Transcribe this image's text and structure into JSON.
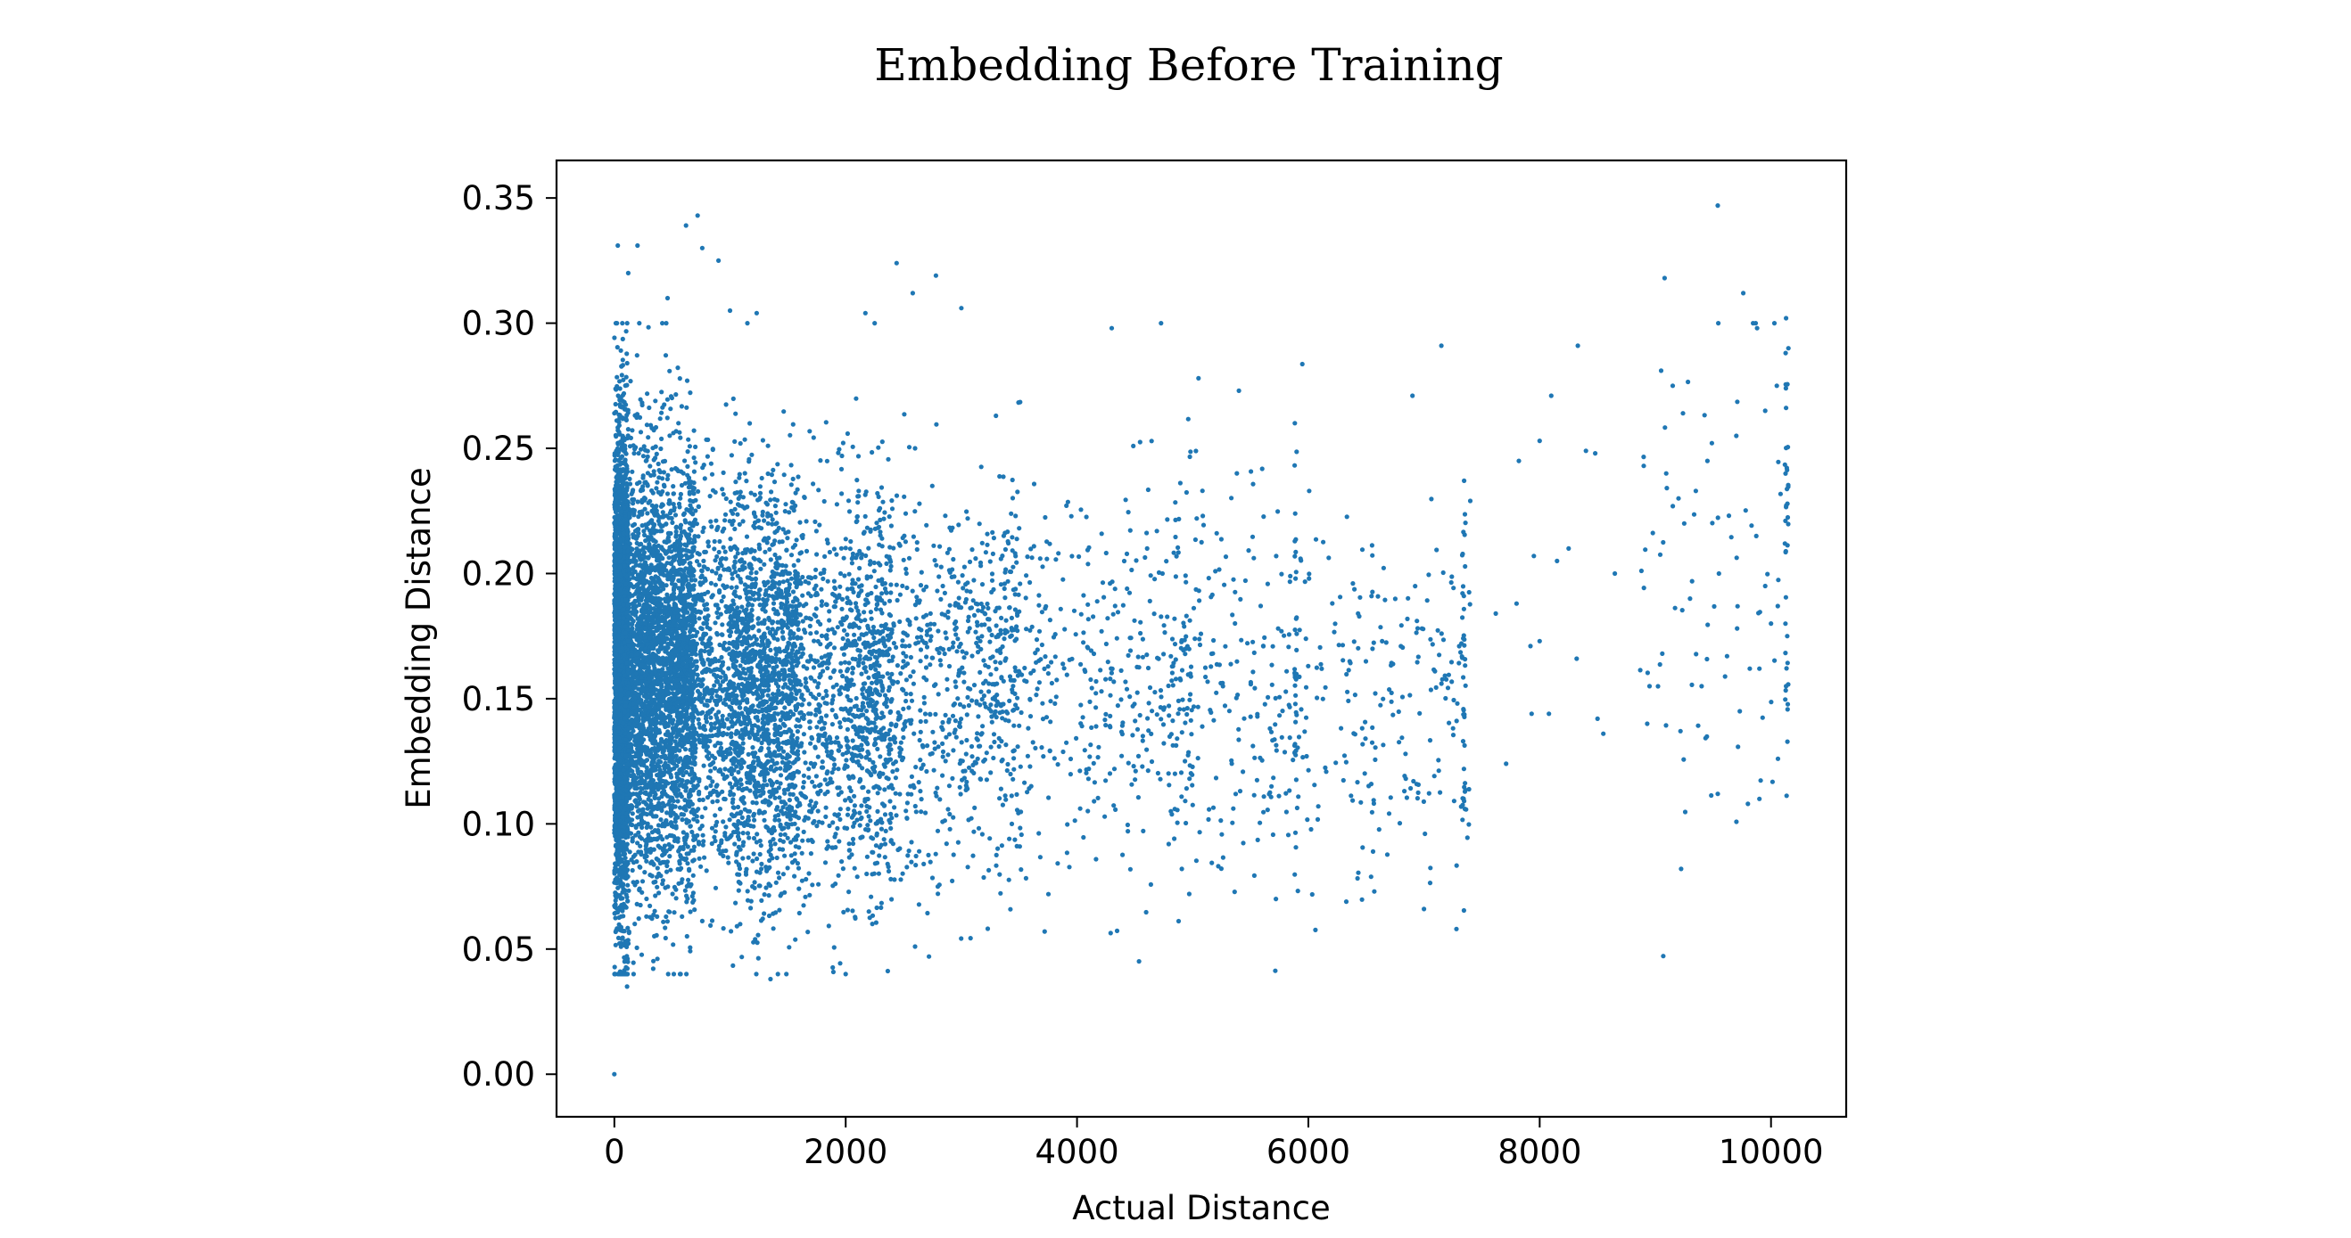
{
  "chart_data": {
    "type": "scatter",
    "title": "Embedding Before Training",
    "xlabel": "Actual Distance",
    "ylabel": "Embedding Distance",
    "xlim": [
      -500,
      10650
    ],
    "ylim": [
      -0.017,
      0.365
    ],
    "x_ticks": [
      0,
      2000,
      4000,
      6000,
      8000,
      10000
    ],
    "x_tick_labels": [
      "0",
      "2000",
      "4000",
      "6000",
      "8000",
      "10000"
    ],
    "y_ticks": [
      0.0,
      0.05,
      0.1,
      0.15,
      0.2,
      0.25,
      0.3,
      0.35
    ],
    "y_tick_labels": [
      "0.00",
      "0.05",
      "0.10",
      "0.15",
      "0.20",
      "0.25",
      "0.30",
      "0.35"
    ],
    "grid": false,
    "legend": "none",
    "marker_color": "#1f77b4",
    "points": [
      {
        "x": 0,
        "y": 0.0
      },
      {
        "x": 30,
        "y": 0.331
      },
      {
        "x": 200,
        "y": 0.331
      },
      {
        "x": 120,
        "y": 0.32
      },
      {
        "x": 620,
        "y": 0.339
      },
      {
        "x": 720,
        "y": 0.343
      },
      {
        "x": 760,
        "y": 0.33
      },
      {
        "x": 900,
        "y": 0.325
      },
      {
        "x": 460,
        "y": 0.31
      },
      {
        "x": 1000,
        "y": 0.305
      },
      {
        "x": 1230,
        "y": 0.304
      },
      {
        "x": 1150,
        "y": 0.3
      },
      {
        "x": 2440,
        "y": 0.324
      },
      {
        "x": 2780,
        "y": 0.319
      },
      {
        "x": 2580,
        "y": 0.312
      },
      {
        "x": 2170,
        "y": 0.304
      },
      {
        "x": 3000,
        "y": 0.306
      },
      {
        "x": 2600,
        "y": 0.25
      },
      {
        "x": 4300,
        "y": 0.298
      },
      {
        "x": 7150,
        "y": 0.291
      },
      {
        "x": 8330,
        "y": 0.291
      },
      {
        "x": 9540,
        "y": 0.347
      },
      {
        "x": 9080,
        "y": 0.318
      },
      {
        "x": 9760,
        "y": 0.312
      },
      {
        "x": 10130,
        "y": 0.302
      },
      {
        "x": 9880,
        "y": 0.298
      },
      {
        "x": 5050,
        "y": 0.278
      },
      {
        "x": 5400,
        "y": 0.273
      },
      {
        "x": 6900,
        "y": 0.271
      },
      {
        "x": 8100,
        "y": 0.271
      },
      {
        "x": 9050,
        "y": 0.281
      },
      {
        "x": 9150,
        "y": 0.275
      },
      {
        "x": 7820,
        "y": 0.245
      },
      {
        "x": 8000,
        "y": 0.253
      },
      {
        "x": 8400,
        "y": 0.249
      },
      {
        "x": 8480,
        "y": 0.248
      },
      {
        "x": 8900,
        "y": 0.243
      },
      {
        "x": 7400,
        "y": 0.229
      },
      {
        "x": 8150,
        "y": 0.205
      },
      {
        "x": 8250,
        "y": 0.21
      },
      {
        "x": 8650,
        "y": 0.2
      },
      {
        "x": 7950,
        "y": 0.207
      },
      {
        "x": 7800,
        "y": 0.188
      },
      {
        "x": 7620,
        "y": 0.184
      },
      {
        "x": 8000,
        "y": 0.173
      },
      {
        "x": 7920,
        "y": 0.171
      },
      {
        "x": 8320,
        "y": 0.166
      },
      {
        "x": 8080,
        "y": 0.144
      },
      {
        "x": 7930,
        "y": 0.144
      },
      {
        "x": 8500,
        "y": 0.142
      },
      {
        "x": 8550,
        "y": 0.136
      },
      {
        "x": 8950,
        "y": 0.155
      },
      {
        "x": 8930,
        "y": 0.14
      },
      {
        "x": 7710,
        "y": 0.124
      },
      {
        "x": 9060,
        "y": 0.168
      },
      {
        "x": 9400,
        "y": 0.155
      },
      {
        "x": 9540,
        "y": 0.112
      },
      {
        "x": 9800,
        "y": 0.108
      },
      {
        "x": 9900,
        "y": 0.11
      },
      {
        "x": 10060,
        "y": 0.126
      },
      {
        "x": 10130,
        "y": 0.155
      },
      {
        "x": 10140,
        "y": 0.175
      },
      {
        "x": 10120,
        "y": 0.212
      },
      {
        "x": 9730,
        "y": 0.145
      },
      {
        "x": 9620,
        "y": 0.167
      },
      {
        "x": 9900,
        "y": 0.162
      },
      {
        "x": 10000,
        "y": 0.18
      },
      {
        "x": 9950,
        "y": 0.195
      },
      {
        "x": 9550,
        "y": 0.2
      },
      {
        "x": 9300,
        "y": 0.19
      },
      {
        "x": 9250,
        "y": 0.22
      },
      {
        "x": 9200,
        "y": 0.23
      },
      {
        "x": 9450,
        "y": 0.245
      },
      {
        "x": 9700,
        "y": 0.255
      },
      {
        "x": 9950,
        "y": 0.265
      },
      {
        "x": 10050,
        "y": 0.275
      },
      {
        "x": 10150,
        "y": 0.29
      },
      {
        "x": 1350,
        "y": 0.038
      },
      {
        "x": 2720,
        "y": 0.047
      },
      {
        "x": 2600,
        "y": 0.051
      },
      {
        "x": 3720,
        "y": 0.057
      },
      {
        "x": 7280,
        "y": 0.058
      },
      {
        "x": 7000,
        "y": 0.066
      },
      {
        "x": 6570,
        "y": 0.073
      },
      {
        "x": 5720,
        "y": 0.07
      },
      {
        "x": 4970,
        "y": 0.072
      },
      {
        "x": 2200,
        "y": 0.065
      },
      {
        "x": 110,
        "y": 0.035
      },
      {
        "x": 50,
        "y": 0.041
      }
    ],
    "density_model": [
      {
        "x_min": 0,
        "x_max": 120,
        "y_mean": 0.158,
        "y_sd": 0.05,
        "n": 2200
      },
      {
        "x_min": 0,
        "x_max": 700,
        "y_mean": 0.162,
        "y_sd": 0.042,
        "n": 2600
      },
      {
        "x_min": 0,
        "x_max": 1600,
        "y_mean": 0.155,
        "y_sd": 0.04,
        "n": 2600
      },
      {
        "x_min": 1000,
        "x_max": 2400,
        "y_mean": 0.153,
        "y_sd": 0.04,
        "n": 1400
      },
      {
        "x_min": 2000,
        "x_max": 3500,
        "y_mean": 0.155,
        "y_sd": 0.038,
        "n": 850
      },
      {
        "x_min": 3300,
        "x_max": 5000,
        "y_mean": 0.158,
        "y_sd": 0.038,
        "n": 420
      },
      {
        "x_min": 4800,
        "x_max": 6000,
        "y_mean": 0.158,
        "y_sd": 0.038,
        "n": 220
      },
      {
        "x_min": 6000,
        "x_max": 7400,
        "y_mean": 0.148,
        "y_sd": 0.035,
        "n": 200
      },
      {
        "x_min": 5880,
        "x_max": 5900,
        "y_mean": 0.17,
        "y_sd": 0.045,
        "n": 35
      },
      {
        "x_min": 7330,
        "x_max": 7360,
        "y_mean": 0.16,
        "y_sd": 0.04,
        "n": 35
      },
      {
        "x_min": 10120,
        "x_max": 10150,
        "y_mean": 0.22,
        "y_sd": 0.05,
        "n": 35
      },
      {
        "x_min": 8800,
        "x_max": 10100,
        "y_mean": 0.19,
        "y_sd": 0.05,
        "n": 70
      }
    ]
  }
}
